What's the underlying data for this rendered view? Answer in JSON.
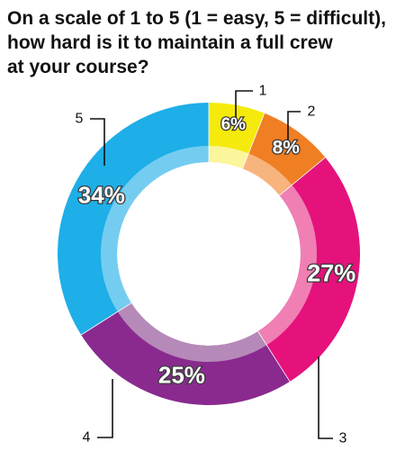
{
  "title_lines": [
    "On a scale of 1 to 5 (1 = easy, 5 = difficult),",
    "how hard is it to maintain a full crew",
    "at your course?"
  ],
  "chart_data": {
    "type": "pie",
    "title": "On a scale of 1 to 5 (1 = easy, 5 = difficult), how hard is it to maintain a full crew at your course?",
    "donut": true,
    "slices": [
      {
        "category": "1",
        "value": 6,
        "label": "6%",
        "color": "#f5ea0c",
        "light": "#fbf59c"
      },
      {
        "category": "2",
        "value": 8,
        "label": "8%",
        "color": "#f07e23",
        "light": "#f8b47d"
      },
      {
        "category": "3",
        "value": 27,
        "label": "27%",
        "color": "#e5127c",
        "light": "#f07fb4"
      },
      {
        "category": "4",
        "value": 25,
        "label": "25%",
        "color": "#8a2a8f",
        "light": "#b58ab8"
      },
      {
        "category": "5",
        "value": 34,
        "label": "34%",
        "color": "#1eaee8",
        "light": "#74cdf0"
      }
    ]
  }
}
